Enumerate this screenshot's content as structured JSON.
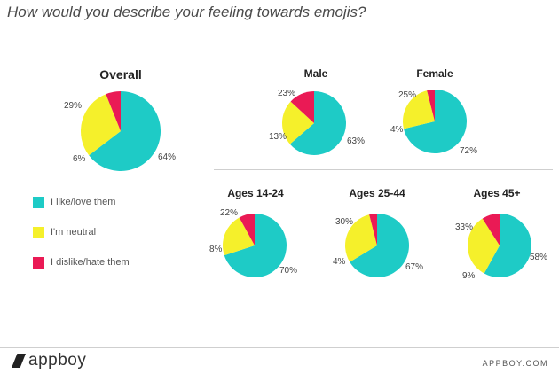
{
  "title": "How would you describe your feeling towards emojis?",
  "colors": {
    "like": "#1ecbc6",
    "neutral": "#f5f02b",
    "dislike": "#ea1a55"
  },
  "legend": [
    {
      "key": "like",
      "label": "I like/love them"
    },
    {
      "key": "neutral",
      "label": "I'm neutral"
    },
    {
      "key": "dislike",
      "label": "I dislike/hate them"
    }
  ],
  "chart_data": [
    {
      "type": "pie",
      "title": "Overall",
      "categories": [
        "I like/love them",
        "I'm neutral",
        "I dislike/hate them"
      ],
      "values": [
        64,
        29,
        6
      ],
      "labels": [
        "64%",
        "29%",
        "6%"
      ]
    },
    {
      "type": "pie",
      "title": "Male",
      "categories": [
        "I like/love them",
        "I'm neutral",
        "I dislike/hate them"
      ],
      "values": [
        63,
        23,
        13
      ],
      "labels": [
        "63%",
        "23%",
        "13%"
      ]
    },
    {
      "type": "pie",
      "title": "Female",
      "categories": [
        "I like/love them",
        "I'm neutral",
        "I dislike/hate them"
      ],
      "values": [
        72,
        25,
        4
      ],
      "labels": [
        "72%",
        "25%",
        "4%"
      ]
    },
    {
      "type": "pie",
      "title": "Ages 14-24",
      "categories": [
        "I like/love them",
        "I'm neutral",
        "I dislike/hate them"
      ],
      "values": [
        70,
        22,
        8
      ],
      "labels": [
        "70%",
        "22%",
        "8%"
      ]
    },
    {
      "type": "pie",
      "title": "Ages 25-44",
      "categories": [
        "I like/love them",
        "I'm neutral",
        "I dislike/hate them"
      ],
      "values": [
        67,
        30,
        4
      ],
      "labels": [
        "67%",
        "30%",
        "4%"
      ]
    },
    {
      "type": "pie",
      "title": "Ages 45+",
      "categories": [
        "I like/love them",
        "I'm neutral",
        "I dislike/hate them"
      ],
      "values": [
        58,
        33,
        9
      ],
      "labels": [
        "58%",
        "33%",
        "9%"
      ]
    }
  ],
  "footer": {
    "brand": "appboy",
    "site": "APPBOY.COM"
  }
}
